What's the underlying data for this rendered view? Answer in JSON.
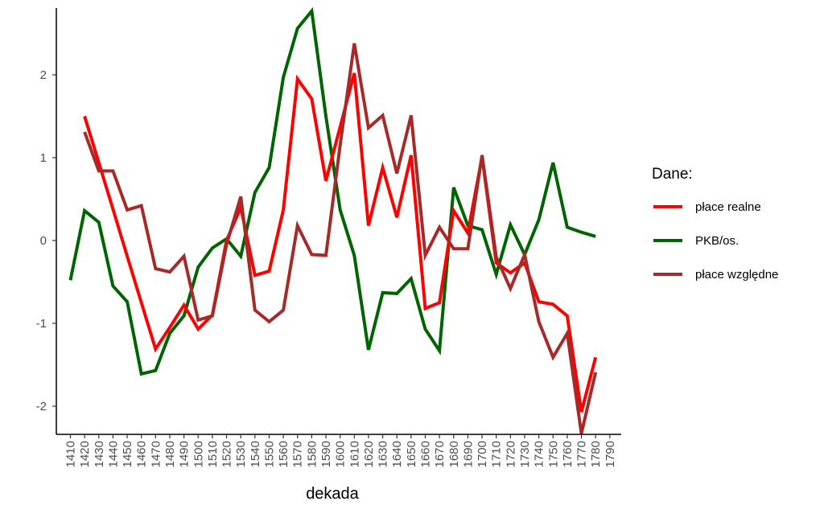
{
  "chart_data": {
    "type": "line",
    "title": "",
    "xlabel": "dekada",
    "ylabel": "",
    "x": [
      1410,
      1420,
      1430,
      1440,
      1450,
      1460,
      1470,
      1480,
      1490,
      1500,
      1510,
      1520,
      1530,
      1540,
      1550,
      1560,
      1570,
      1580,
      1590,
      1600,
      1610,
      1620,
      1630,
      1640,
      1650,
      1660,
      1670,
      1680,
      1690,
      1700,
      1710,
      1720,
      1730,
      1740,
      1750,
      1760,
      1770,
      1780,
      1790
    ],
    "xlim": [
      1410,
      1790
    ],
    "ylim": [
      -2.34,
      2.79
    ],
    "yticks": [
      -2,
      -1,
      0,
      1,
      2
    ],
    "grid": false,
    "legend": {
      "title": "Dane:",
      "placement": "right"
    },
    "series": [
      {
        "name": "płace realne",
        "color": "#ff0000",
        "values": [
          null,
          1.5,
          0.94,
          0.38,
          -0.19,
          -0.75,
          -1.31,
          -1.05,
          -0.78,
          -1.07,
          -0.9,
          0.0,
          0.4,
          -0.42,
          -0.37,
          0.37,
          1.95,
          1.71,
          0.72,
          1.37,
          2.02,
          0.18,
          0.88,
          0.28,
          1.03,
          -0.82,
          -0.75,
          0.36,
          0.09,
          1.01,
          -0.27,
          -0.39,
          -0.27,
          -0.74,
          -0.77,
          -0.91,
          -2.07,
          -1.41,
          null
        ]
      },
      {
        "name": "PKB/os.",
        "color": "#006400",
        "values": [
          -0.48,
          0.36,
          0.22,
          -0.55,
          -0.74,
          -1.61,
          -1.57,
          -1.12,
          -0.91,
          -0.32,
          -0.09,
          0.02,
          -0.19,
          0.58,
          0.88,
          1.97,
          2.56,
          2.77,
          1.5,
          0.37,
          -0.18,
          -1.32,
          -0.63,
          -0.64,
          -0.46,
          -1.07,
          -1.33,
          0.64,
          0.18,
          0.13,
          -0.41,
          0.19,
          -0.17,
          0.25,
          0.94,
          0.16,
          0.1,
          0.05,
          null
        ]
      },
      {
        "name": "płace względne",
        "color": "#a52a2a",
        "values": [
          null,
          1.31,
          0.84,
          0.84,
          0.37,
          0.42,
          -0.34,
          -0.38,
          -0.19,
          -0.96,
          -0.91,
          -0.05,
          0.53,
          -0.84,
          -0.98,
          -0.84,
          0.18,
          -0.17,
          -0.18,
          1.15,
          2.38,
          1.36,
          1.51,
          0.81,
          1.51,
          -0.18,
          0.16,
          -0.1,
          -0.1,
          1.03,
          -0.2,
          -0.58,
          -0.17,
          -0.98,
          -1.41,
          -1.12,
          -2.33,
          -1.59,
          null
        ]
      }
    ]
  }
}
